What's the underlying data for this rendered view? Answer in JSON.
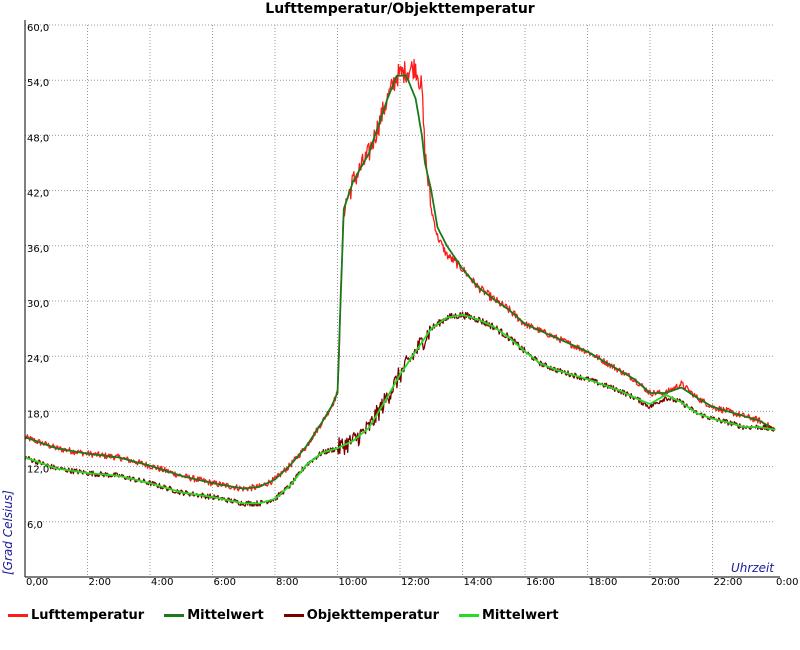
{
  "chart_data": {
    "type": "line",
    "title": "Lufttemperatur/Objekttemperatur",
    "xlabel": "Uhrzeit",
    "ylabel": "[Grad Celsius]",
    "xlim": [
      0,
      24
    ],
    "ylim": [
      0,
      60
    ],
    "x_ticks": [
      {
        "value": 0,
        "label": "0,00"
      },
      {
        "value": 2,
        "label": "2:00"
      },
      {
        "value": 4,
        "label": "4:00"
      },
      {
        "value": 6,
        "label": "6:00"
      },
      {
        "value": 8,
        "label": "8:00"
      },
      {
        "value": 10,
        "label": "10:00"
      },
      {
        "value": 12,
        "label": "12:00"
      },
      {
        "value": 14,
        "label": "14:00"
      },
      {
        "value": 16,
        "label": "16:00"
      },
      {
        "value": 18,
        "label": "18:00"
      },
      {
        "value": 20,
        "label": "20:00"
      },
      {
        "value": 22,
        "label": "22:00"
      },
      {
        "value": 24,
        "label": "0:00"
      }
    ],
    "y_ticks": [
      {
        "value": 6,
        "label": "6,0"
      },
      {
        "value": 12,
        "label": "12,0"
      },
      {
        "value": 18,
        "label": "18,0"
      },
      {
        "value": 24,
        "label": "24,0"
      },
      {
        "value": 30,
        "label": "30,0"
      },
      {
        "value": 36,
        "label": "36,0"
      },
      {
        "value": 42,
        "label": "42,0"
      },
      {
        "value": 48,
        "label": "48,0"
      },
      {
        "value": 54,
        "label": "54,0"
      },
      {
        "value": 60,
        "label": "60,0"
      }
    ],
    "grid": true,
    "legend_position": "bottom",
    "series": [
      {
        "name": "Lufttemperatur",
        "color": "#ff1a1a",
        "noise": 0.7,
        "x": [
          0,
          1,
          2,
          3,
          4,
          5,
          6,
          7,
          7.5,
          8,
          8.5,
          9,
          9.5,
          9.8,
          10,
          10.1,
          10.2,
          10.5,
          11,
          11.3,
          11.6,
          11.9,
          12.2,
          12.5,
          12.7,
          12.8,
          13,
          13.2,
          13.5,
          14,
          14.5,
          15,
          15.5,
          16,
          17,
          18,
          19,
          19.5,
          20,
          20.5,
          21,
          21.5,
          22,
          23,
          23.5,
          24
        ],
        "y": [
          15.2,
          14,
          13.4,
          13,
          12.1,
          11,
          10.2,
          9.6,
          9.8,
          10.6,
          12.2,
          14.2,
          16.8,
          18.5,
          20,
          30,
          40,
          43,
          46,
          49,
          52,
          54.5,
          55,
          55.5,
          53,
          46,
          40,
          37,
          35,
          33.5,
          31.5,
          30.2,
          29,
          27.5,
          26,
          24.5,
          22.5,
          21.5,
          20,
          20,
          21,
          19.5,
          18.5,
          17.5,
          17,
          16
        ]
      },
      {
        "name": "Mittelwert",
        "color": "#1a7a1a",
        "noise": 0,
        "x": [
          0,
          1,
          2,
          3,
          4,
          5,
          6,
          7,
          7.5,
          8,
          8.5,
          9,
          9.5,
          9.8,
          10,
          10.1,
          10.2,
          10.5,
          11,
          11.3,
          11.6,
          11.9,
          12.2,
          12.5,
          12.7,
          12.8,
          13,
          13.2,
          13.5,
          14,
          14.5,
          15,
          15.5,
          16,
          17,
          18,
          19,
          19.5,
          20,
          20.5,
          21,
          21.5,
          22,
          23,
          23.5,
          24
        ],
        "y": [
          15.2,
          14,
          13.4,
          13,
          12.1,
          11,
          10.2,
          9.6,
          9.8,
          10.6,
          12.2,
          14.2,
          16.8,
          18.5,
          20,
          30,
          40,
          43,
          46,
          49,
          52,
          54.5,
          54.5,
          52,
          48,
          45,
          42,
          38,
          36,
          33.5,
          31.5,
          30.2,
          29,
          27.5,
          26,
          24.5,
          22.5,
          21.5,
          20,
          20,
          20.6,
          19.5,
          18.5,
          17.5,
          17,
          16
        ]
      },
      {
        "name": "Objekttemperatur",
        "color": "#7a0000",
        "noise": 0.6,
        "x": [
          0,
          1,
          2,
          3,
          4,
          5,
          6,
          7,
          7.5,
          8,
          8.5,
          9,
          9.5,
          10,
          10.5,
          11,
          11.5,
          12,
          12.5,
          13,
          13.5,
          14,
          14.5,
          15,
          15.5,
          16,
          16.5,
          17,
          18,
          19,
          19.5,
          20,
          20.5,
          21,
          21.5,
          22,
          22.5,
          23,
          23.5,
          24
        ],
        "y": [
          13,
          11.8,
          11.3,
          11,
          10.2,
          9.2,
          8.7,
          8,
          8,
          8.5,
          10,
          12.2,
          13.5,
          14,
          14.8,
          16.2,
          19,
          22,
          24.5,
          27,
          28.2,
          28.5,
          28,
          27.2,
          26,
          24.5,
          23.2,
          22.5,
          21.5,
          20.3,
          19.5,
          18.5,
          19.5,
          19,
          17.8,
          17.2,
          16.8,
          16.3,
          16.3,
          16
        ]
      },
      {
        "name": "Mittelwert",
        "color": "#22dd22",
        "noise": 0,
        "x": [
          0,
          1,
          2,
          3,
          4,
          5,
          6,
          7,
          7.5,
          8,
          8.5,
          9,
          9.5,
          10,
          10.5,
          11,
          11.5,
          12,
          12.5,
          13,
          13.5,
          14,
          14.5,
          15,
          15.5,
          16,
          16.5,
          17,
          18,
          19,
          19.5,
          20,
          20.5,
          21,
          21.5,
          22,
          22.5,
          23,
          23.5,
          24
        ],
        "y": [
          13,
          11.8,
          11.3,
          11,
          10.2,
          9.2,
          8.7,
          8,
          8,
          8.5,
          10,
          12.2,
          13.5,
          14,
          14.8,
          16.2,
          19,
          22,
          24.5,
          27,
          28.2,
          28.5,
          28,
          27.2,
          26,
          24.5,
          23.2,
          22.5,
          21.5,
          20.3,
          19.5,
          18.8,
          19.8,
          19,
          17.8,
          17.2,
          16.8,
          16.3,
          16.3,
          16
        ]
      }
    ]
  }
}
